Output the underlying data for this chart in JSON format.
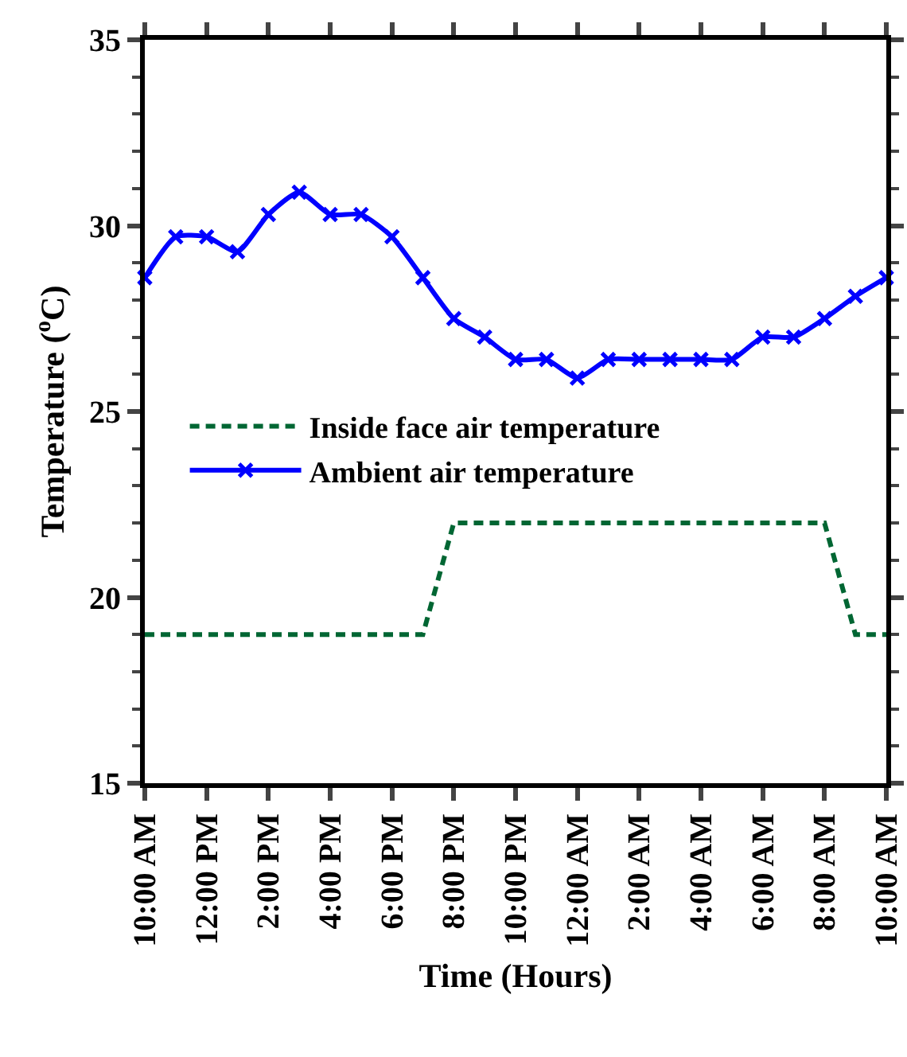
{
  "chart_data": {
    "type": "line",
    "xlabel": "Time (Hours)",
    "ylabel": "Temperature ($^{o}$C)",
    "categories": [
      "10:00 AM",
      null,
      "12:00 PM",
      null,
      "2:00 PM",
      null,
      "4:00 PM",
      null,
      "6:00 PM",
      null,
      "8:00 PM",
      null,
      "10:00 PM",
      null,
      "12:00 AM",
      null,
      "2:00 AM",
      null,
      "4:00 AM",
      null,
      "6:00 AM",
      null,
      "8:00 AM",
      null,
      "10:00 AM"
    ],
    "ylim": [
      15,
      35
    ],
    "yticks": [
      15,
      20,
      25,
      30,
      35
    ],
    "grid": false,
    "legend": "left",
    "series": [
      {
        "name": "Inside face air temperature",
        "color": "#006633",
        "line_style": "dashed",
        "marker": "none",
        "values": [
          19,
          19,
          19,
          19,
          19,
          19,
          19,
          19,
          19,
          19,
          22,
          22,
          22,
          22,
          22,
          22,
          22,
          22,
          22,
          22,
          22,
          22,
          22,
          19,
          19
        ]
      },
      {
        "name": "Ambient air temperature",
        "color": "#0000ff",
        "line_style": "solid",
        "marker": "cross",
        "values": [
          28.6,
          29.7,
          29.7,
          29.3,
          30.3,
          30.9,
          30.3,
          30.3,
          29.7,
          28.6,
          27.5,
          27.0,
          26.4,
          26.4,
          25.9,
          26.4,
          26.4,
          26.4,
          26.4,
          26.4,
          27.0,
          27.0,
          27.5,
          28.1,
          28.6
        ]
      }
    ]
  }
}
